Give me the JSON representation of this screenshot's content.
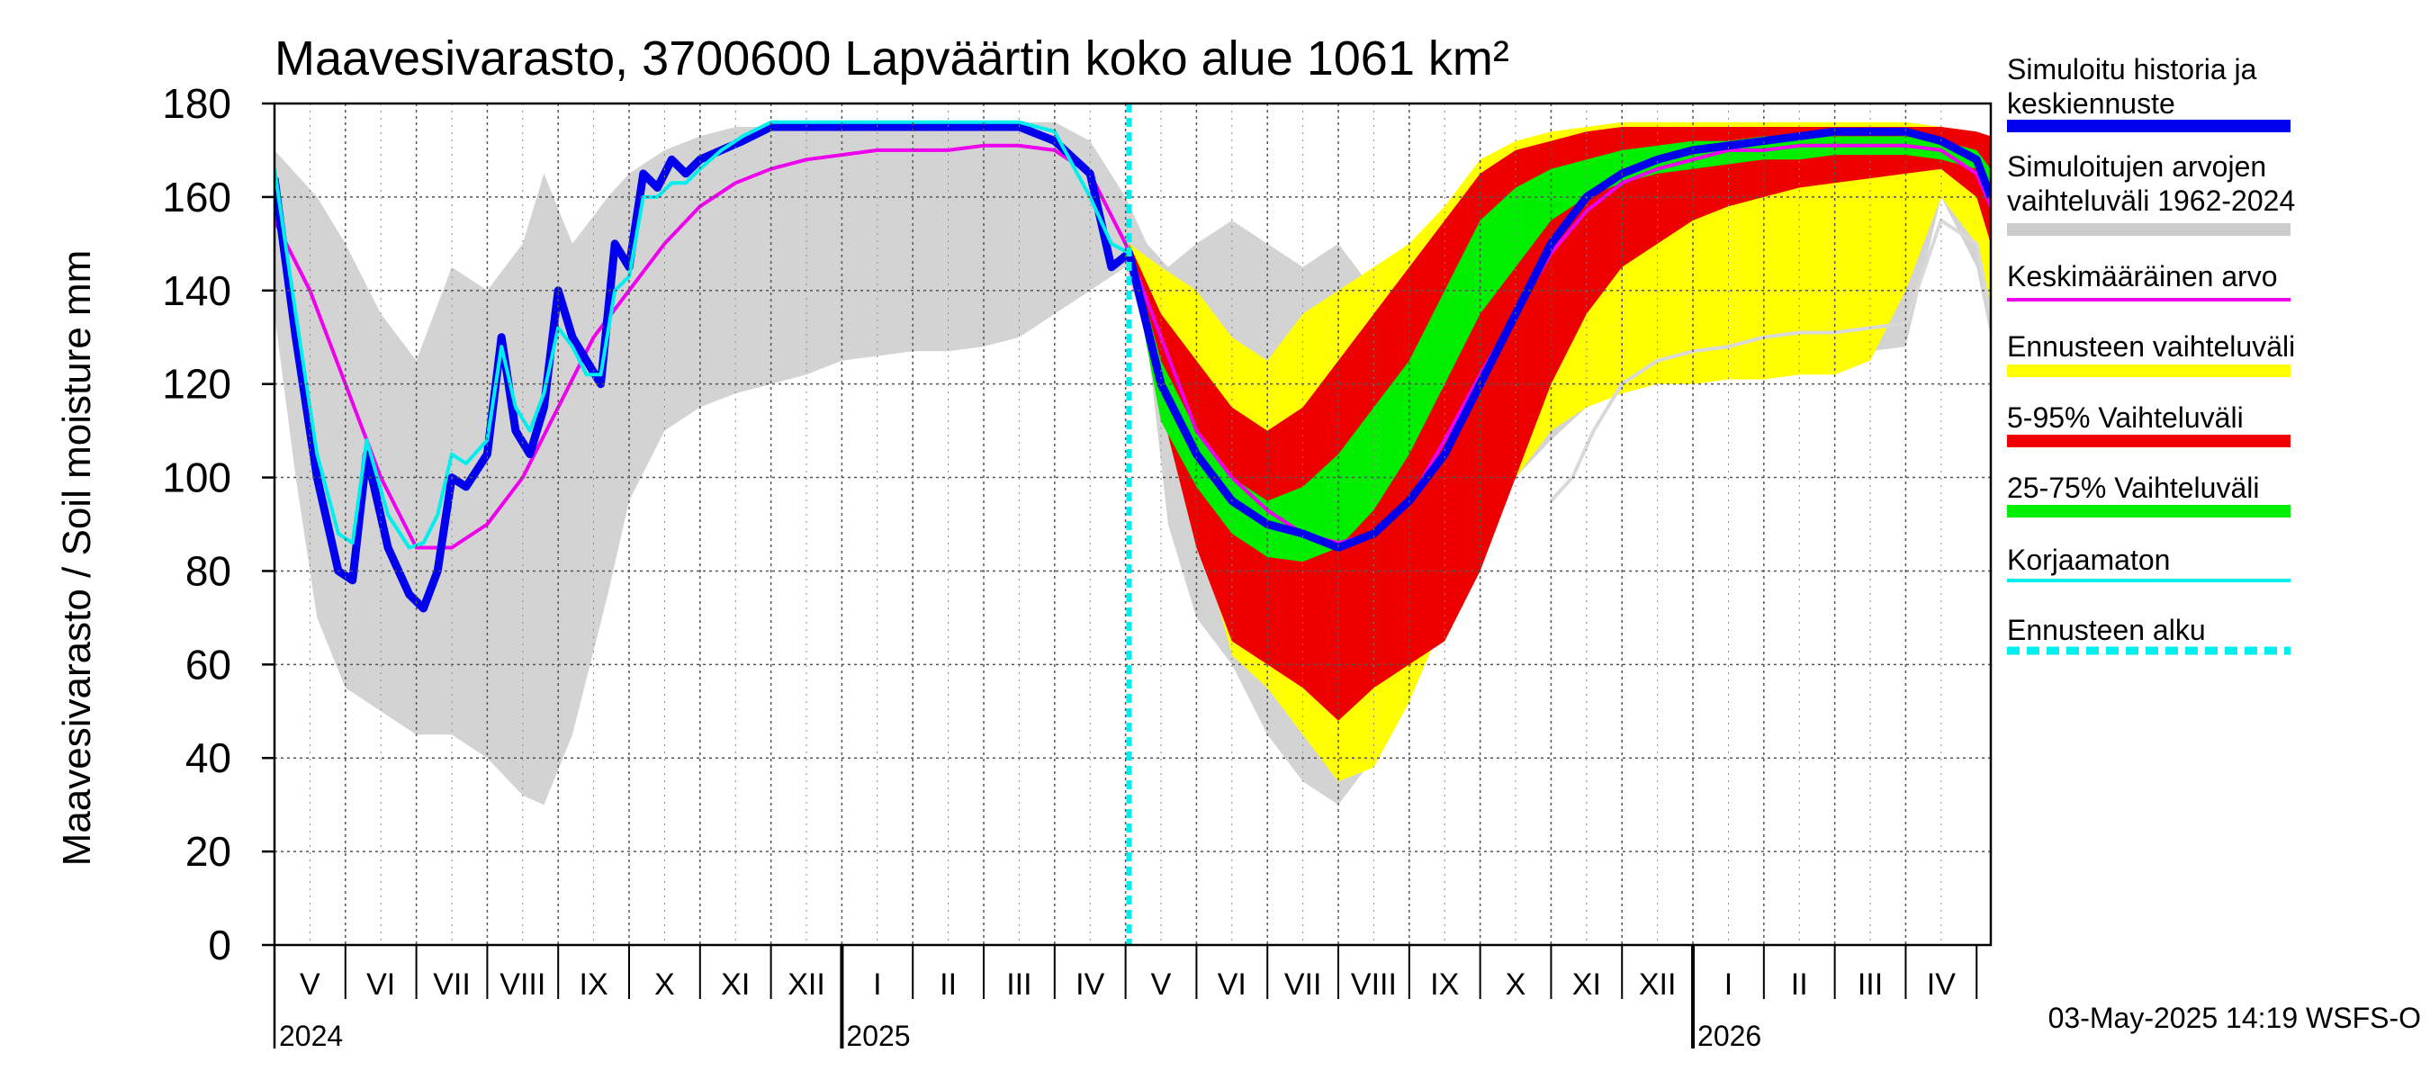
{
  "chart_data": {
    "type": "area",
    "title": "Maavesivarasto, 3700600 Lapväärtin koko alue 1061 km²",
    "ylabel": "Maavesivarasto / Soil moisture   mm",
    "ylim": [
      0,
      180
    ],
    "yticks": [
      0,
      20,
      40,
      60,
      80,
      100,
      120,
      140,
      160,
      180
    ],
    "xlim": [
      0,
      24.2
    ],
    "x_unit": "months since 2024-05-01",
    "forecast_start": 12.05,
    "months": [
      "V",
      "VI",
      "VII",
      "VIII",
      "IX",
      "X",
      "XI",
      "XII",
      "I",
      "II",
      "III",
      "IV",
      "V",
      "VI",
      "VII",
      "VIII",
      "IX",
      "X",
      "XI",
      "XII",
      "I",
      "II",
      "III",
      "IV"
    ],
    "years": [
      {
        "label": "2024",
        "x": 0
      },
      {
        "label": "2025",
        "x": 8
      },
      {
        "label": "2026",
        "x": 20
      }
    ],
    "timestamp": "03-May-2025 14:19 WSFS-O",
    "legend": [
      {
        "key": "history",
        "label": "Simuloitu historia ja keskiennuste",
        "lines": [
          "Simuloitu historia ja",
          "keskiennuste"
        ],
        "color": "#0000ee",
        "style": "thick"
      },
      {
        "key": "range_hist",
        "label": "Simuloitujen arvojen vaihteluväli 1962-2024",
        "lines": [
          "Simuloitujen arvojen",
          "vaihteluväli 1962-2024"
        ],
        "color": "#cccccc",
        "style": "thick"
      },
      {
        "key": "mean",
        "label": "Keskimääräinen arvo",
        "lines": [
          "Keskimääräinen arvo"
        ],
        "color": "#ee00ee",
        "style": "thin"
      },
      {
        "key": "fc_range",
        "label": "Ennusteen vaihteluväli",
        "lines": [
          "Ennusteen vaihteluväli"
        ],
        "color": "#ffff00",
        "style": "thick"
      },
      {
        "key": "p5_95",
        "label": "5-95% Vaihteluväli",
        "lines": [
          "5-95% Vaihteluväli"
        ],
        "color": "#ee0000",
        "style": "thick"
      },
      {
        "key": "p25_75",
        "label": "25-75% Vaihteluväli",
        "lines": [
          "25-75% Vaihteluväli"
        ],
        "color": "#00ee00",
        "style": "thick"
      },
      {
        "key": "uncorrected",
        "label": "Korjaamaton",
        "lines": [
          "Korjaamaton"
        ],
        "color": "#00eeee",
        "style": "thin"
      },
      {
        "key": "fc_start",
        "label": "Ennusteen alku",
        "lines": [
          "Ennusteen alku"
        ],
        "color": "#00eeee",
        "style": "dashed"
      }
    ],
    "series": {
      "hist_range": {
        "x": [
          0,
          0.3,
          0.6,
          1.0,
          1.5,
          2.0,
          2.5,
          3.0,
          3.5,
          3.8,
          4.2,
          4.7,
          5.0,
          5.5,
          6.0,
          6.5,
          7.0,
          7.5,
          8.0,
          8.5,
          9.0,
          9.5,
          10.0,
          10.5,
          11.0,
          11.5,
          12.0,
          12.3,
          12.6,
          13.0,
          13.5,
          14.0,
          14.5,
          15.0,
          15.5,
          16.0,
          16.5,
          17.0,
          17.5,
          18.0,
          18.5,
          19.0,
          19.5,
          20.0,
          20.5,
          21.0,
          21.5,
          22.0,
          22.5,
          23.0,
          23.5,
          24.0,
          24.2
        ],
        "upper": [
          170,
          165,
          160,
          150,
          135,
          125,
          145,
          140,
          150,
          165,
          150,
          160,
          165,
          170,
          173,
          175,
          175,
          176,
          176,
          176,
          175,
          175,
          175,
          176,
          176,
          172,
          160,
          150,
          145,
          150,
          155,
          150,
          145,
          150,
          140,
          148,
          150,
          160,
          168,
          170,
          172,
          173,
          174,
          175,
          175,
          175,
          175,
          175,
          175,
          175,
          175,
          172,
          170
        ],
        "lower": [
          135,
          100,
          70,
          55,
          50,
          45,
          45,
          40,
          32,
          30,
          45,
          75,
          95,
          110,
          115,
          118,
          120,
          122,
          125,
          126,
          127,
          127,
          128,
          130,
          135,
          140,
          145,
          130,
          90,
          70,
          60,
          45,
          35,
          30,
          40,
          55,
          80,
          95,
          100,
          108,
          115,
          120,
          122,
          124,
          125,
          126,
          126,
          127,
          127,
          128,
          160,
          145,
          130
        ]
      },
      "forecast_range": {
        "x": [
          12.05,
          12.5,
          13.0,
          13.5,
          14.0,
          14.5,
          15.0,
          15.5,
          16.0,
          16.5,
          17.0,
          17.5,
          18.0,
          18.5,
          19.0,
          19.5,
          20.0,
          20.5,
          21.0,
          21.5,
          22.0,
          22.5,
          23.0,
          23.5,
          24.0,
          24.2
        ],
        "upper": [
          150,
          145,
          140,
          130,
          125,
          135,
          140,
          145,
          150,
          158,
          168,
          172,
          174,
          175,
          176,
          176,
          176,
          176,
          176,
          176,
          176,
          176,
          176,
          175,
          174,
          172
        ],
        "lower": [
          148,
          120,
          90,
          62,
          55,
          45,
          35,
          38,
          52,
          70,
          85,
          100,
          110,
          115,
          118,
          120,
          120,
          121,
          121,
          122,
          122,
          125,
          140,
          160,
          150,
          135
        ]
      },
      "p5_95": {
        "x": [
          12.05,
          12.5,
          13.0,
          13.5,
          14.0,
          14.5,
          15.0,
          15.5,
          16.0,
          16.5,
          17.0,
          17.5,
          18.0,
          18.5,
          19.0,
          19.5,
          20.0,
          20.5,
          21.0,
          21.5,
          22.0,
          22.5,
          23.0,
          23.5,
          24.0,
          24.2
        ],
        "upper": [
          150,
          135,
          125,
          115,
          110,
          115,
          125,
          135,
          145,
          155,
          165,
          170,
          172,
          174,
          175,
          175,
          175,
          175,
          175,
          175,
          175,
          175,
          175,
          175,
          174,
          173
        ],
        "lower": [
          148,
          115,
          85,
          65,
          60,
          55,
          48,
          55,
          60,
          65,
          80,
          100,
          120,
          135,
          145,
          150,
          155,
          158,
          160,
          162,
          163,
          164,
          165,
          166,
          160,
          150
        ]
      },
      "p25_75": {
        "x": [
          12.05,
          12.5,
          13.0,
          13.5,
          14.0,
          14.5,
          15.0,
          15.5,
          16.0,
          16.5,
          17.0,
          17.5,
          18.0,
          18.5,
          19.0,
          19.5,
          20.0,
          20.5,
          21.0,
          21.5,
          22.0,
          22.5,
          23.0,
          23.5,
          24.0,
          24.2
        ],
        "upper": [
          150,
          125,
          110,
          100,
          95,
          98,
          105,
          115,
          125,
          140,
          155,
          162,
          166,
          168,
          170,
          171,
          172,
          172,
          173,
          173,
          173,
          173,
          173,
          172,
          170,
          166
        ],
        "lower": [
          148,
          112,
          98,
          88,
          83,
          82,
          85,
          93,
          105,
          120,
          135,
          145,
          155,
          160,
          163,
          165,
          166,
          167,
          168,
          168,
          169,
          169,
          169,
          168,
          166,
          160
        ]
      },
      "history": {
        "x": [
          0,
          0.3,
          0.6,
          0.9,
          1.1,
          1.3,
          1.6,
          1.9,
          2.1,
          2.3,
          2.5,
          2.7,
          3.0,
          3.2,
          3.4,
          3.6,
          3.8,
          4.0,
          4.2,
          4.4,
          4.6,
          4.8,
          5.0,
          5.2,
          5.4,
          5.6,
          5.8,
          6.0,
          6.3,
          6.6,
          7.0,
          7.5,
          8.0,
          8.5,
          9.0,
          9.5,
          10.0,
          10.5,
          11.0,
          11.5,
          11.8,
          12.05,
          12.5,
          13.0,
          13.5,
          14.0,
          14.5,
          15.0,
          15.5,
          16.0,
          16.5,
          17.0,
          17.5,
          18.0,
          18.5,
          19.0,
          19.5,
          20.0,
          20.5,
          21.0,
          21.5,
          22.0,
          22.5,
          23.0,
          23.5,
          24.0,
          24.2
        ],
        "y": [
          164,
          130,
          100,
          80,
          78,
          105,
          85,
          75,
          72,
          80,
          100,
          98,
          105,
          130,
          110,
          105,
          115,
          140,
          130,
          125,
          120,
          150,
          145,
          165,
          162,
          168,
          165,
          168,
          170,
          172,
          175,
          175,
          175,
          175,
          175,
          175,
          175,
          175,
          172,
          165,
          145,
          148,
          120,
          105,
          95,
          90,
          88,
          85,
          88,
          95,
          105,
          120,
          135,
          150,
          160,
          165,
          168,
          170,
          171,
          172,
          173,
          174,
          174,
          174,
          172,
          168,
          160
        ]
      },
      "uncorrected": {
        "x": [
          0,
          0.3,
          0.6,
          0.9,
          1.1,
          1.3,
          1.6,
          1.9,
          2.1,
          2.3,
          2.5,
          2.7,
          3.0,
          3.2,
          3.4,
          3.6,
          3.8,
          4.0,
          4.2,
          4.4,
          4.6,
          4.8,
          5.0,
          5.2,
          5.4,
          5.6,
          5.8,
          6.0,
          6.3,
          6.6,
          7.0,
          7.5,
          8.0,
          8.5,
          9.0,
          9.5,
          10.0,
          10.5,
          11.0,
          11.5,
          11.8,
          12.05
        ],
        "y": [
          166,
          135,
          105,
          88,
          86,
          108,
          92,
          85,
          86,
          92,
          105,
          103,
          108,
          128,
          115,
          110,
          118,
          132,
          128,
          122,
          122,
          140,
          143,
          160,
          160,
          163,
          163,
          166,
          170,
          173,
          176,
          176,
          176,
          176,
          176,
          176,
          176,
          176,
          174,
          160,
          150,
          148
        ]
      },
      "mean": {
        "x": [
          0,
          0.5,
          1.0,
          1.5,
          2.0,
          2.5,
          3.0,
          3.5,
          4.0,
          4.5,
          5.0,
          5.5,
          6.0,
          6.5,
          7.0,
          7.5,
          8.0,
          8.5,
          9.0,
          9.5,
          10.0,
          10.5,
          11.0,
          11.5,
          12.0,
          12.5,
          13.0,
          13.5,
          14.0,
          14.5,
          15.0,
          15.5,
          16.0,
          16.5,
          17.0,
          17.5,
          18.0,
          18.5,
          19.0,
          19.5,
          20.0,
          20.5,
          21.0,
          21.5,
          22.0,
          22.5,
          23.0,
          23.5,
          24.0,
          24.2
        ],
        "y": [
          155,
          140,
          120,
          100,
          85,
          85,
          90,
          100,
          115,
          130,
          140,
          150,
          158,
          163,
          166,
          168,
          169,
          170,
          170,
          170,
          171,
          171,
          170,
          165,
          150,
          130,
          110,
          100,
          93,
          88,
          86,
          88,
          95,
          108,
          122,
          135,
          148,
          157,
          163,
          166,
          168,
          170,
          170,
          171,
          171,
          171,
          171,
          170,
          165,
          158
        ]
      },
      "uncorrected_forecast_proxy": {
        "x": [
          18.0,
          18.3,
          18.6,
          19.0,
          19.5,
          20.0,
          20.5,
          21.0,
          21.5,
          22.0,
          22.5,
          23.0,
          23.5,
          24.0,
          24.2
        ],
        "y": [
          95,
          100,
          110,
          120,
          125,
          127,
          128,
          130,
          131,
          131,
          132,
          133,
          155,
          150,
          135
        ]
      }
    }
  }
}
